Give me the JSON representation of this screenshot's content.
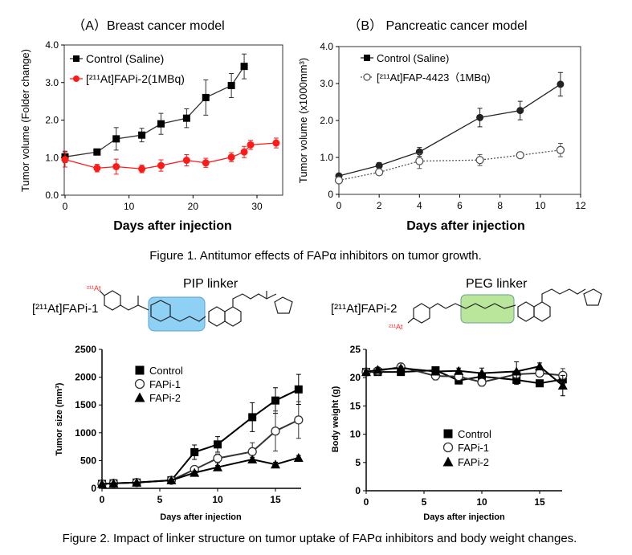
{
  "figure1_caption": "Figure 1. Antitumor effects of FAPα inhibitors on tumor growth.",
  "figure2_caption": "Figure 2. Impact of linker structure on tumor uptake of FAPα inhibitors and body weight changes.",
  "structures": {
    "pip": {
      "title": "PIP linker",
      "compound": "[²¹¹At]FAPi-1",
      "isotope": "²¹¹At",
      "highlight_color": "#8fd0f5"
    },
    "peg": {
      "title": "PEG linker",
      "compound": "[²¹¹At]FAPi-2",
      "isotope": "²¹¹At",
      "highlight_color": "#b9e69a"
    }
  },
  "chart_data": [
    {
      "type": "line",
      "title": "（A）Breast cancer model",
      "xlabel": "Days after injection",
      "ylabel": "Tumor volume (Folder change)",
      "xlim": [
        0,
        35
      ],
      "ylim": [
        0,
        4
      ],
      "xticks": [
        "0",
        "10",
        "20",
        "30"
      ],
      "yticks": [
        "0.0",
        "1.0",
        "2.0",
        "3.0",
        "4.0"
      ],
      "legend": "top-left",
      "series": [
        {
          "name": "Control (Saline)",
          "color": "#333333",
          "marker": "square",
          "x": [
            0,
            5,
            8,
            12,
            15,
            19,
            22,
            26,
            28
          ],
          "y": [
            1.02,
            1.15,
            1.5,
            1.6,
            1.9,
            2.05,
            2.6,
            2.92,
            3.43
          ],
          "err": [
            0.15,
            0.08,
            0.3,
            0.18,
            0.28,
            0.25,
            0.47,
            0.32,
            0.33
          ]
        },
        {
          "name": "[²¹¹At]FAPi-2(1MBq)",
          "color": "#ff1a1a",
          "marker": "circle",
          "x": [
            0,
            5,
            8,
            12,
            15,
            19,
            22,
            26,
            28,
            29,
            33
          ],
          "y": [
            0.95,
            0.72,
            0.76,
            0.7,
            0.79,
            0.93,
            0.86,
            1.01,
            1.15,
            1.34,
            1.39
          ],
          "err": [
            0.2,
            0.1,
            0.2,
            0.1,
            0.15,
            0.15,
            0.12,
            0.12,
            0.15,
            0.12,
            0.13
          ]
        }
      ]
    },
    {
      "type": "line",
      "title": "（B） Pancreatic cancer model",
      "xlabel": "Days after injection",
      "ylabel": "Tumor volume (x1000mm³)",
      "xlim": [
        0,
        12
      ],
      "ylim": [
        0,
        4
      ],
      "xticks": [
        "0",
        "2",
        "4",
        "6",
        "8",
        "10",
        "12"
      ],
      "yticks": [
        "0",
        "1.0",
        "2.0",
        "3.0",
        "4.0"
      ],
      "legend": "top-left",
      "series": [
        {
          "name": "Control (Saline)",
          "color": "#222222",
          "marker": "circle-filled",
          "x": [
            0,
            2,
            4,
            7,
            9,
            11
          ],
          "y": [
            0.5,
            0.78,
            1.15,
            2.08,
            2.27,
            2.98
          ],
          "err": [
            0.05,
            0.08,
            0.12,
            0.25,
            0.25,
            0.32
          ]
        },
        {
          "name": "[²¹¹At]FAP-4423（1MBq)",
          "color": "#555555",
          "marker": "circle-open",
          "dashed": true,
          "x": [
            0,
            2,
            4,
            7,
            9,
            11
          ],
          "y": [
            0.38,
            0.6,
            0.9,
            0.93,
            1.06,
            1.2
          ],
          "err": [
            0.05,
            0.05,
            0.2,
            0.15,
            0.05,
            0.18
          ]
        }
      ]
    },
    {
      "type": "line",
      "title": "",
      "xlabel": "Days after injection",
      "ylabel": "Tumor size (mm³)",
      "xlim": [
        0,
        17
      ],
      "ylim": [
        0,
        2500
      ],
      "xticks": [
        "0",
        "5",
        "10",
        "15"
      ],
      "yticks": [
        "0",
        "500",
        "1000",
        "1500",
        "2000",
        "2500"
      ],
      "legend": "top-left",
      "series": [
        {
          "name": "Control",
          "color": "#000000",
          "marker": "square",
          "x": [
            0,
            1,
            3,
            6,
            8,
            10,
            13,
            15,
            17
          ],
          "y": [
            80,
            90,
            105,
            145,
            650,
            790,
            1280,
            1580,
            1780
          ],
          "err": [
            10,
            10,
            10,
            20,
            130,
            140,
            260,
            230,
            270
          ]
        },
        {
          "name": "FAPi-1",
          "color": "#333333",
          "marker": "circle-open",
          "x": [
            0,
            1,
            3,
            6,
            8,
            10,
            13,
            15,
            17
          ],
          "y": [
            80,
            90,
            105,
            145,
            340,
            540,
            660,
            1030,
            1230
          ],
          "err": [
            10,
            10,
            10,
            20,
            50,
            80,
            160,
            360,
            330
          ]
        },
        {
          "name": "FAPi-2",
          "color": "#000000",
          "marker": "triangle",
          "x": [
            0,
            1,
            3,
            6,
            8,
            10,
            13,
            15,
            17
          ],
          "y": [
            80,
            90,
            105,
            145,
            280,
            380,
            520,
            430,
            550
          ],
          "err": [
            10,
            10,
            10,
            20,
            30,
            30,
            40,
            40,
            40
          ]
        }
      ]
    },
    {
      "type": "line",
      "title": "",
      "xlabel": "Days after injection",
      "ylabel": "Body weight (g)",
      "xlim": [
        0,
        17
      ],
      "ylim": [
        0,
        25
      ],
      "xticks": [
        "0",
        "5",
        "10",
        "15"
      ],
      "yticks": [
        "0",
        "5",
        "10",
        "15",
        "20",
        "25"
      ],
      "legend": "center",
      "series": [
        {
          "name": "Control",
          "color": "#000000",
          "marker": "square",
          "x": [
            0,
            1,
            3,
            6,
            8,
            10,
            13,
            15,
            17
          ],
          "y": [
            21,
            21,
            21,
            21.3,
            19.5,
            20.2,
            19.6,
            19,
            19.7
          ],
          "err": [
            0.3,
            0.3,
            0.3,
            0.4,
            0.6,
            0.6,
            0.8,
            0.5,
            0.8
          ]
        },
        {
          "name": "FAPi-1",
          "color": "#333333",
          "marker": "circle-open",
          "x": [
            0,
            1,
            3,
            6,
            8,
            10,
            13,
            15,
            17
          ],
          "y": [
            21,
            21.2,
            21.9,
            20.3,
            20.2,
            19.2,
            20.6,
            20.8,
            20.4
          ],
          "err": [
            0.3,
            0.3,
            0.3,
            0.7,
            0.6,
            0.7,
            0.6,
            0.5,
            1.2
          ]
        },
        {
          "name": "FAPi-2",
          "color": "#000000",
          "marker": "triangle",
          "x": [
            0,
            1,
            3,
            6,
            8,
            10,
            13,
            15,
            17
          ],
          "y": [
            21,
            21.4,
            21.7,
            21.1,
            21.2,
            20.8,
            21.1,
            22,
            18.6
          ],
          "err": [
            0.3,
            0.3,
            0.3,
            0.4,
            0.5,
            0.9,
            1.7,
            0.6,
            1.8
          ]
        }
      ]
    }
  ]
}
